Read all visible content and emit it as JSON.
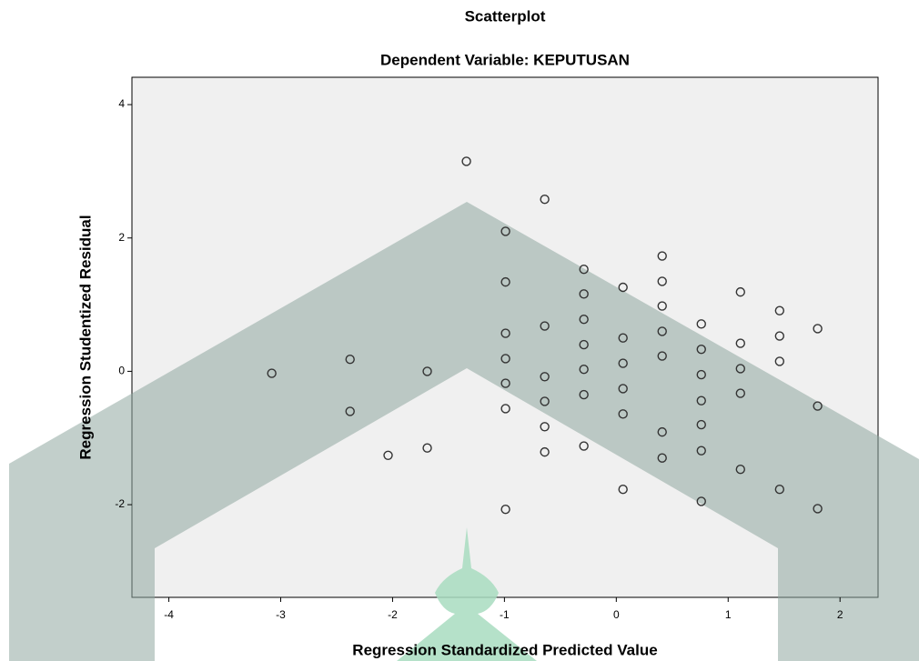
{
  "chart_data": {
    "type": "scatter",
    "title": "Scatterplot",
    "subtitle": "Dependent Variable: KEPUTUSAN",
    "x_label": "Regression Standardized Predicted Value",
    "y_label": "Regression Studentized Residual",
    "x": [
      -3.08,
      -2.38,
      -2.38,
      -1.69,
      -2.04,
      -1.69,
      -1.34,
      -0.99,
      -0.99,
      -0.99,
      -0.99,
      -0.99,
      -0.99,
      -0.99,
      -0.64,
      -0.64,
      -0.64,
      -0.64,
      -0.64,
      -0.64,
      -0.29,
      -0.29,
      -0.29,
      -0.29,
      -0.29,
      -0.29,
      -0.29,
      0.06,
      0.06,
      0.06,
      0.06,
      0.06,
      0.06,
      0.41,
      0.41,
      0.41,
      0.41,
      0.41,
      0.41,
      0.41,
      0.76,
      0.76,
      0.76,
      0.76,
      0.76,
      0.76,
      0.76,
      1.11,
      1.11,
      1.11,
      1.11,
      1.11,
      1.46,
      1.46,
      1.46,
      1.46,
      1.8,
      1.8,
      1.8
    ],
    "values": [
      -0.03,
      0.18,
      -0.6,
      0.0,
      -1.26,
      -1.15,
      3.15,
      2.1,
      1.34,
      0.57,
      0.19,
      -0.18,
      -0.56,
      -2.07,
      2.58,
      0.68,
      -0.08,
      -0.45,
      -0.83,
      -1.21,
      1.53,
      1.16,
      0.78,
      0.4,
      0.03,
      -0.35,
      -1.12,
      1.26,
      0.5,
      0.12,
      -0.26,
      -0.64,
      -1.77,
      1.73,
      1.35,
      0.98,
      0.6,
      0.23,
      -0.91,
      -1.3,
      0.71,
      0.33,
      -0.05,
      -0.44,
      -0.8,
      -1.19,
      -1.95,
      1.19,
      0.42,
      0.04,
      -0.33,
      -1.47,
      0.91,
      0.53,
      0.15,
      -1.77,
      0.64,
      -0.52,
      -2.06
    ],
    "color": "#333333",
    "xlim": [
      -4.33,
      2.34
    ],
    "ylim": [
      -3.39,
      4.41
    ],
    "xticks": [
      -4,
      -3,
      -2,
      -1,
      0,
      1,
      2
    ],
    "yticks": [
      -2,
      0,
      2,
      4
    ]
  }
}
